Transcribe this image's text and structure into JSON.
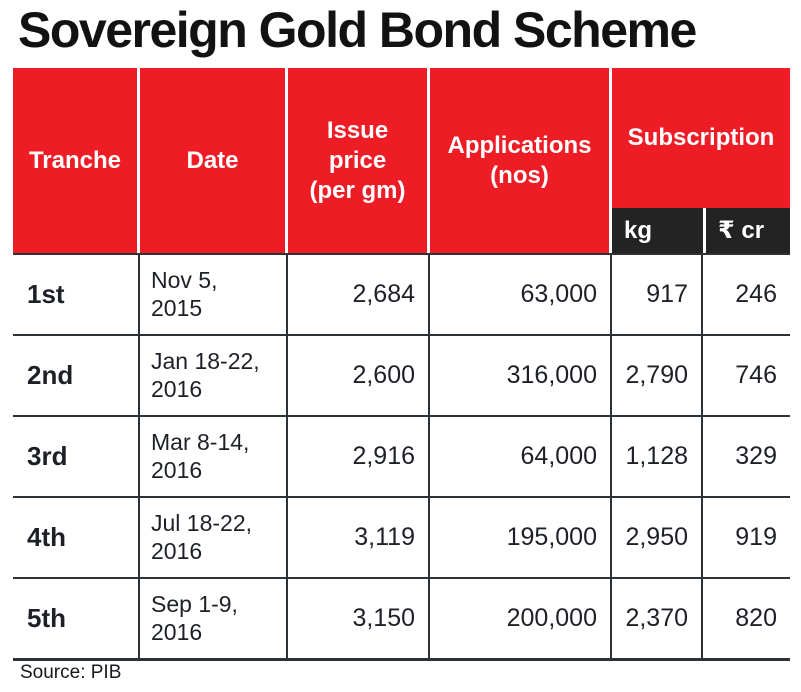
{
  "title": "Sovereign Gold Bond Scheme",
  "source": "Source: PIB",
  "colors": {
    "header_red": "#ee1c25",
    "subheader_black": "#232323",
    "text_dark": "#1d2127",
    "grid_line": "#2d3237"
  },
  "header": {
    "tranche": "Tranche",
    "date": "Date",
    "issue_price_lines": [
      "Issue",
      "price",
      "(per gm)"
    ],
    "applications_lines": [
      "Applications",
      "(nos)"
    ],
    "subscription": "Subscription",
    "kg": "kg",
    "rupee_cr": "₹ cr"
  },
  "table": {
    "rows": [
      {
        "tranche": "1st",
        "date": [
          "Nov 5,",
          "2015"
        ],
        "issue_price": "2,684",
        "applications": "63,000",
        "kg": "917",
        "rupee_cr": "246"
      },
      {
        "tranche": "2nd",
        "date": [
          "Jan 18-22,",
          "2016"
        ],
        "issue_price": "2,600",
        "applications": "316,000",
        "kg": "2,790",
        "rupee_cr": "746"
      },
      {
        "tranche": "3rd",
        "date": [
          "Mar 8-14,",
          "2016"
        ],
        "issue_price": "2,916",
        "applications": "64,000",
        "kg": "1,128",
        "rupee_cr": "329"
      },
      {
        "tranche": "4th",
        "date": [
          "Jul 18-22,",
          "2016"
        ],
        "issue_price": "3,119",
        "applications": "195,000",
        "kg": "2,950",
        "rupee_cr": "919"
      },
      {
        "tranche": "5th",
        "date": [
          "Sep 1-9,",
          "2016"
        ],
        "issue_price": "3,150",
        "applications": "200,000",
        "kg": "2,370",
        "rupee_cr": "820"
      }
    ]
  },
  "chart_data": {
    "type": "table",
    "title": "Sovereign Gold Bond Scheme",
    "columns": [
      "Tranche",
      "Date",
      "Issue price (per gm)",
      "Applications (nos)",
      "Subscription kg",
      "Subscription ₹ cr"
    ],
    "rows": [
      [
        "1st",
        "Nov 5, 2015",
        2684,
        63000,
        917,
        246
      ],
      [
        "2nd",
        "Jan 18-22, 2016",
        2600,
        316000,
        2790,
        746
      ],
      [
        "3rd",
        "Mar 8-14, 2016",
        2916,
        64000,
        1128,
        329
      ],
      [
        "4th",
        "Jul 18-22, 2016",
        3119,
        195000,
        2950,
        919
      ],
      [
        "5th",
        "Sep 1-9, 2016",
        3150,
        200000,
        2370,
        820
      ]
    ],
    "source": "PIB"
  }
}
